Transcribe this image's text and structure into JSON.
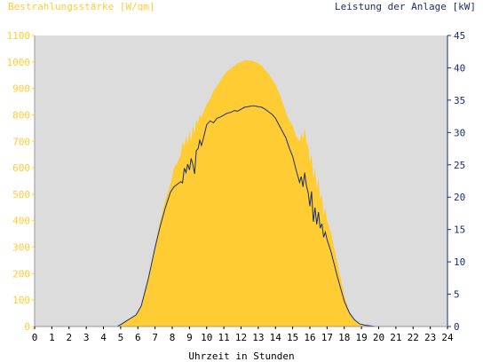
{
  "chart_data": {
    "type": "area",
    "title_left": "Bestrahlungsstärke [W/qm]",
    "title_right": "Leistung der Anlage [kW]",
    "xlabel": "Uhrzeit in Stunden",
    "xlim": [
      0,
      24
    ],
    "x_ticks": [
      "0",
      "1",
      "2",
      "3",
      "4",
      "5",
      "6",
      "7",
      "8",
      "9",
      "10",
      "11",
      "12",
      "13",
      "14",
      "15",
      "16",
      "17",
      "18",
      "19",
      "20",
      "21",
      "22",
      "23",
      "24"
    ],
    "y_left_lim": [
      0,
      1100
    ],
    "y_left_ticks": [
      "0",
      "100",
      "200",
      "300",
      "400",
      "500",
      "600",
      "700",
      "800",
      "900",
      "1000",
      "1100"
    ],
    "y_right_lim": [
      0,
      45
    ],
    "y_right_ticks": [
      "0",
      "5",
      "10",
      "15",
      "20",
      "25",
      "30",
      "35",
      "40",
      "45"
    ],
    "colors": {
      "irradiance": "#ffcc33",
      "power": "#1a2f6e",
      "plot_bg": "#dcdcdc",
      "left_axis_text": "#ffcc33",
      "right_axis_text": "#1a2f6e"
    },
    "series": [
      {
        "name": "Bestrahlungsstärke",
        "axis": "left",
        "x": [
          0,
          4.8,
          5.0,
          5.3,
          5.6,
          5.9,
          6.2,
          6.6,
          7.0,
          7.3,
          7.6,
          7.9,
          8.1,
          8.3,
          8.5,
          8.6,
          8.7,
          8.8,
          8.9,
          9.0,
          9.1,
          9.2,
          9.3,
          9.4,
          9.5,
          9.6,
          9.7,
          9.8,
          10.0,
          10.2,
          10.4,
          10.6,
          10.8,
          11.0,
          11.2,
          11.4,
          11.6,
          11.8,
          12.0,
          12.2,
          12.4,
          12.6,
          12.8,
          13.0,
          13.2,
          13.4,
          13.6,
          13.8,
          14.0,
          14.2,
          14.4,
          14.6,
          14.8,
          15.0,
          15.2,
          15.4,
          15.5,
          15.6,
          15.7,
          15.8,
          15.9,
          16.0,
          16.1,
          16.2,
          16.3,
          16.4,
          16.5,
          16.6,
          16.7,
          16.8,
          16.9,
          17.0,
          17.2,
          17.4,
          17.6,
          17.8,
          18.0,
          18.3,
          18.6,
          18.9,
          19.2,
          19.5,
          19.8,
          20.1,
          20.3,
          24
        ],
        "values": [
          0,
          0,
          5,
          20,
          35,
          45,
          80,
          180,
          300,
          400,
          480,
          540,
          600,
          620,
          650,
          700,
          680,
          720,
          690,
          740,
          700,
          760,
          730,
          780,
          770,
          800,
          790,
          810,
          840,
          860,
          890,
          910,
          930,
          950,
          965,
          975,
          985,
          995,
          1000,
          1005,
          1005,
          1005,
          1000,
          995,
          985,
          970,
          955,
          935,
          915,
          885,
          850,
          810,
          780,
          760,
          720,
          700,
          730,
          710,
          750,
          700,
          680,
          620,
          650,
          560,
          600,
          520,
          560,
          480,
          500,
          420,
          450,
          400,
          360,
          300,
          240,
          180,
          120,
          50,
          20,
          10,
          5,
          2,
          0,
          0,
          0,
          0
        ],
        "scale": "approximate"
      },
      {
        "name": "Leistung der Anlage",
        "axis": "right",
        "x": [
          0,
          4.8,
          5.0,
          5.3,
          5.6,
          5.9,
          6.2,
          6.6,
          7.0,
          7.3,
          7.6,
          7.9,
          8.1,
          8.3,
          8.5,
          8.6,
          8.7,
          8.8,
          8.9,
          9.0,
          9.1,
          9.2,
          9.3,
          9.4,
          9.5,
          9.6,
          9.7,
          9.8,
          10.0,
          10.2,
          10.4,
          10.6,
          10.8,
          11.0,
          11.2,
          11.4,
          11.6,
          11.8,
          12.0,
          12.2,
          12.4,
          12.6,
          12.8,
          13.0,
          13.2,
          13.4,
          13.6,
          13.8,
          14.0,
          14.2,
          14.4,
          14.6,
          14.8,
          15.0,
          15.2,
          15.4,
          15.5,
          15.6,
          15.7,
          15.8,
          15.9,
          16.0,
          16.1,
          16.2,
          16.3,
          16.4,
          16.5,
          16.6,
          16.7,
          16.8,
          16.9,
          17.0,
          17.2,
          17.4,
          17.6,
          17.8,
          18.0,
          18.3,
          18.6,
          18.9,
          19.2,
          19.5,
          19.8,
          20.1,
          20.3,
          24
        ],
        "values": [
          0,
          0,
          0.3,
          0.8,
          1.3,
          1.8,
          3.2,
          7.3,
          12.2,
          15.5,
          18.4,
          20.8,
          21.6,
          22.0,
          22.4,
          22.2,
          24.5,
          23.8,
          25.1,
          24.2,
          26.0,
          25.0,
          23.6,
          27.2,
          27.5,
          28.8,
          28.0,
          29.0,
          31.2,
          31.8,
          31.5,
          32.2,
          32.4,
          32.7,
          33.0,
          33.1,
          33.4,
          33.3,
          33.6,
          33.9,
          34.0,
          34.1,
          34.1,
          34.0,
          33.9,
          33.6,
          33.2,
          32.8,
          32.2,
          31.2,
          30.2,
          29.2,
          27.6,
          26.3,
          24.2,
          22.3,
          23.2,
          21.6,
          23.8,
          21.8,
          20.7,
          18.6,
          20.9,
          16.2,
          18.4,
          15.8,
          17.7,
          15.2,
          15.9,
          13.8,
          14.6,
          13.4,
          11.8,
          9.8,
          7.7,
          5.8,
          3.9,
          2.1,
          1.0,
          0.4,
          0.2,
          0.1,
          0,
          0,
          0,
          0
        ],
        "scale": "approximate"
      }
    ]
  }
}
